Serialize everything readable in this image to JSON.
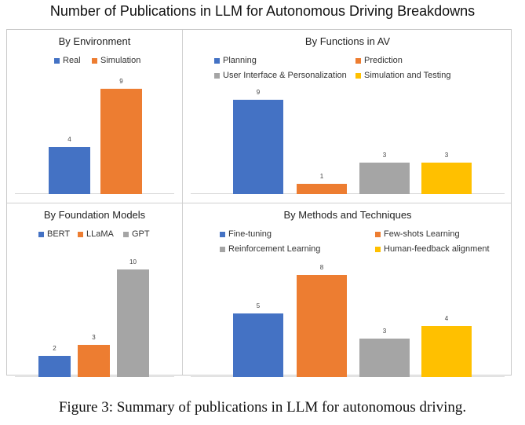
{
  "title": "Number of Publications in LLM for Autonomous Driving Breakdowns",
  "caption": "Figure 3: Summary of publications in LLM for autonomous driving.",
  "colors": {
    "blue": "#4472c4",
    "orange": "#ed7d31",
    "gray": "#a5a5a5",
    "yellow": "#ffc000"
  },
  "chart_data": [
    {
      "type": "bar",
      "title": "By Environment",
      "categories": [
        "Real",
        "Simulation"
      ],
      "values": [
        4,
        9
      ],
      "colors": [
        "#4472c4",
        "#ed7d31"
      ],
      "legend": [
        "Real",
        "Simulation"
      ],
      "ylim": [
        0,
        9
      ]
    },
    {
      "type": "bar",
      "title": "By Functions in AV",
      "categories": [
        "Planning",
        "Prediction",
        "User Interface & Personalization",
        "Simulation and Testing"
      ],
      "values": [
        9,
        1,
        3,
        3
      ],
      "colors": [
        "#4472c4",
        "#ed7d31",
        "#a5a5a5",
        "#ffc000"
      ],
      "legend": [
        "Planning",
        "Prediction",
        "User Interface & Personalization",
        "Simulation and Testing"
      ],
      "ylim": [
        0,
        9
      ]
    },
    {
      "type": "bar",
      "title": "By Foundation Models",
      "categories": [
        "BERT",
        "LLaMA",
        "GPT"
      ],
      "values": [
        2,
        3,
        10
      ],
      "colors": [
        "#4472c4",
        "#ed7d31",
        "#a5a5a5"
      ],
      "legend": [
        "BERT",
        "LLaMA",
        "GPT"
      ],
      "ylim": [
        0,
        10
      ]
    },
    {
      "type": "bar",
      "title": "By Methods and Techniques",
      "categories": [
        "Fine-tuning",
        "Few-shots Learning",
        "Reinforcement Learning",
        "Human-feedback alignment"
      ],
      "values": [
        5,
        8,
        3,
        4
      ],
      "colors": [
        "#4472c4",
        "#ed7d31",
        "#a5a5a5",
        "#ffc000"
      ],
      "legend": [
        "Fine-tuning",
        "Few-shots Learning",
        "Reinforcement Learning",
        "Human-feedback alignment"
      ],
      "ylim": [
        0,
        8
      ]
    }
  ]
}
